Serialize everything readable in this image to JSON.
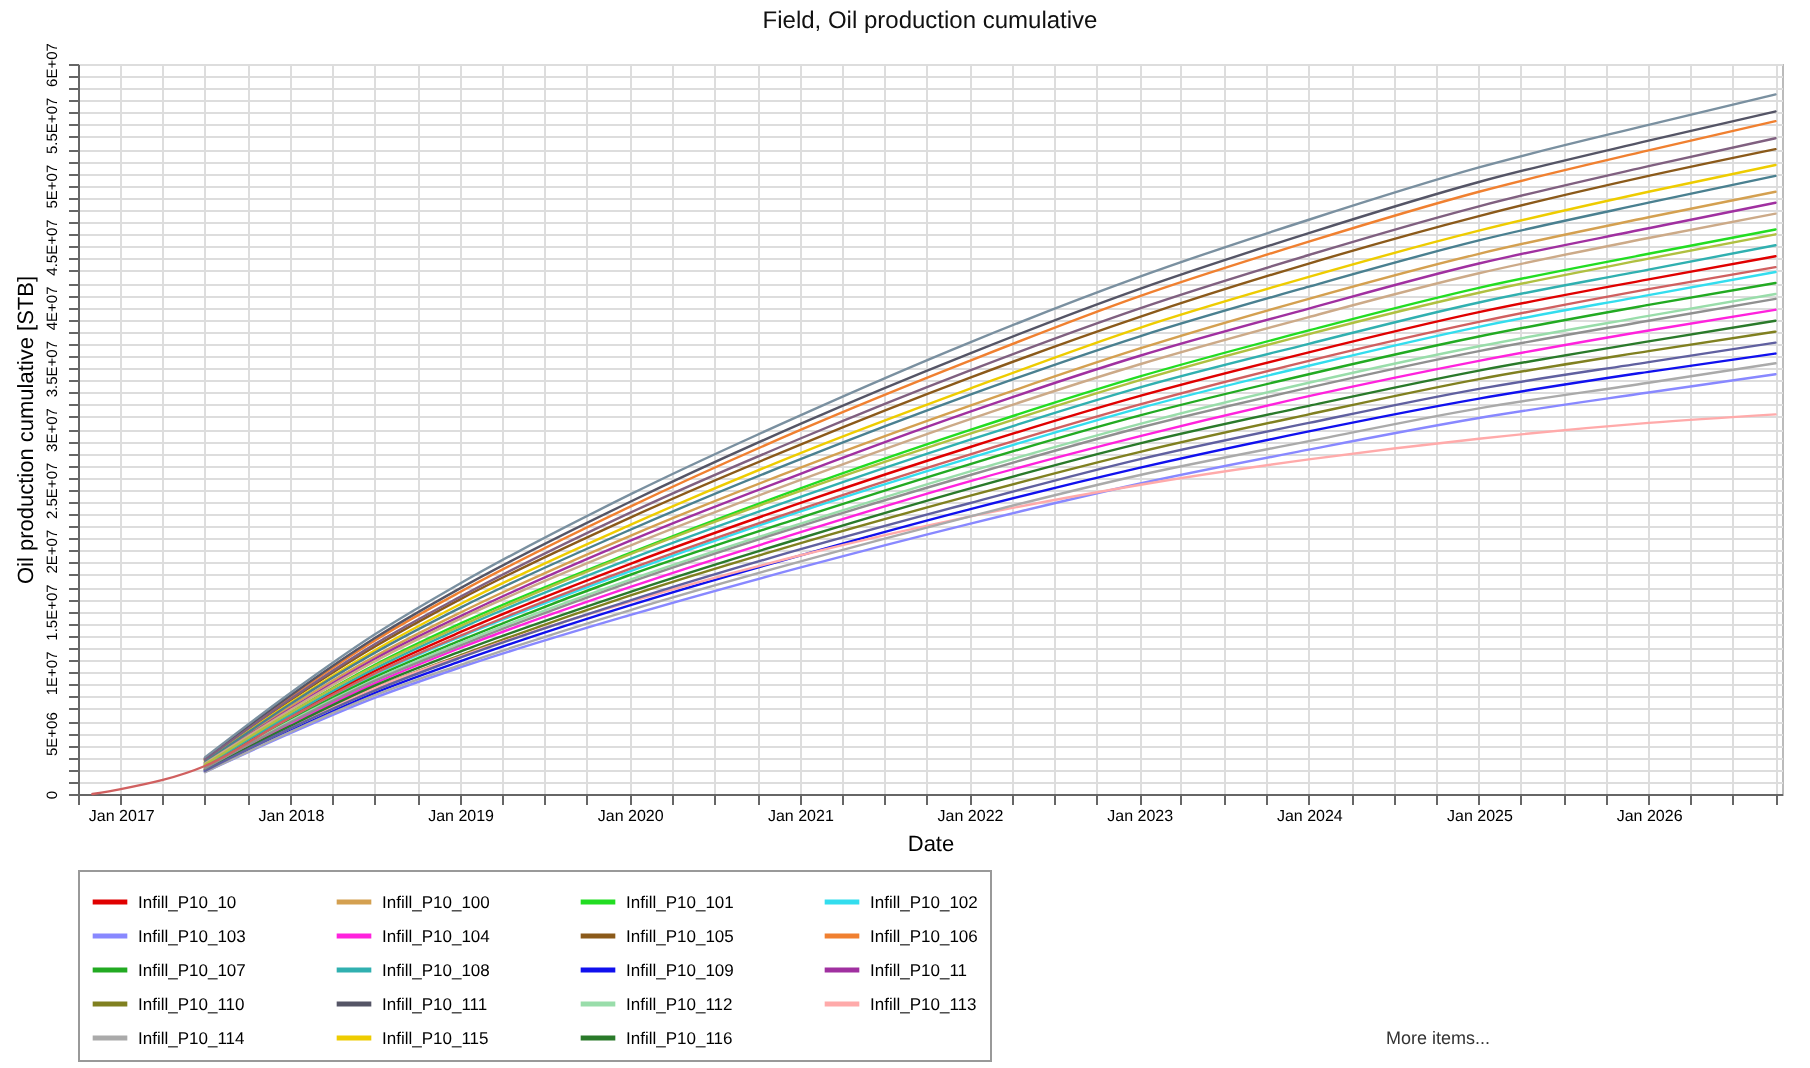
{
  "chart_data": {
    "type": "line",
    "title": "Field, Oil production cumulative",
    "xlabel": "Date",
    "ylabel": "Oil production cumulative [STB]",
    "legend": "bottom",
    "grid": true,
    "marker": "none",
    "line_style": "solid",
    "annotations": [
      "More items..."
    ],
    "x": [
      "2016-11-01",
      "2017-01-01",
      "2017-07-01",
      "2018-01-01",
      "2018-07-01",
      "2019-01-01",
      "2020-01-01",
      "2021-01-01",
      "2022-01-01",
      "2023-01-01",
      "2024-01-01",
      "2025-01-01",
      "2026-01-01",
      "2026-10-01"
    ],
    "xlim": [
      "2016-10-01",
      "2026-10-15"
    ],
    "xticks": [
      {
        "value": "2016-10-01",
        "label": null
      },
      {
        "value": "2017-01-01",
        "label": "Jan 2017"
      },
      {
        "value": "2017-04-01",
        "label": null
      },
      {
        "value": "2017-07-01",
        "label": null
      },
      {
        "value": "2017-10-01",
        "label": null
      },
      {
        "value": "2018-01-01",
        "label": "Jan 2018"
      },
      {
        "value": "2018-04-01",
        "label": null
      },
      {
        "value": "2018-07-01",
        "label": null
      },
      {
        "value": "2018-10-01",
        "label": null
      },
      {
        "value": "2019-01-01",
        "label": "Jan 2019"
      },
      {
        "value": "2019-04-01",
        "label": null
      },
      {
        "value": "2019-07-01",
        "label": null
      },
      {
        "value": "2019-10-01",
        "label": null
      },
      {
        "value": "2020-01-01",
        "label": "Jan 2020"
      },
      {
        "value": "2020-04-01",
        "label": null
      },
      {
        "value": "2020-07-01",
        "label": null
      },
      {
        "value": "2020-10-01",
        "label": null
      },
      {
        "value": "2021-01-01",
        "label": "Jan 2021"
      },
      {
        "value": "2021-04-01",
        "label": null
      },
      {
        "value": "2021-07-01",
        "label": null
      },
      {
        "value": "2021-10-01",
        "label": null
      },
      {
        "value": "2022-01-01",
        "label": "Jan 2022"
      },
      {
        "value": "2022-04-01",
        "label": null
      },
      {
        "value": "2022-07-01",
        "label": null
      },
      {
        "value": "2022-10-01",
        "label": null
      },
      {
        "value": "2023-01-01",
        "label": "Jan 2023"
      },
      {
        "value": "2023-04-01",
        "label": null
      },
      {
        "value": "2023-07-01",
        "label": null
      },
      {
        "value": "2023-10-01",
        "label": null
      },
      {
        "value": "2024-01-01",
        "label": "Jan 2024"
      },
      {
        "value": "2024-04-01",
        "label": null
      },
      {
        "value": "2024-07-01",
        "label": null
      },
      {
        "value": "2024-10-01",
        "label": null
      },
      {
        "value": "2025-01-01",
        "label": "Jan 2025"
      },
      {
        "value": "2025-04-01",
        "label": null
      },
      {
        "value": "2025-07-01",
        "label": null
      },
      {
        "value": "2025-10-01",
        "label": null
      },
      {
        "value": "2026-01-01",
        "label": "Jan 2026"
      },
      {
        "value": "2026-04-01",
        "label": null
      },
      {
        "value": "2026-07-01",
        "label": null
      },
      {
        "value": "2026-10-01",
        "label": null
      }
    ],
    "ylim": [
      0,
      60000000
    ],
    "yticks": [
      0,
      {
        "value": 1000000,
        "label": null
      },
      {
        "value": 2000000,
        "label": null
      },
      {
        "value": 3000000,
        "label": null
      },
      {
        "value": 4000000,
        "label": null
      },
      {
        "value": 5000000,
        "label": "5E+06"
      },
      {
        "value": 6000000,
        "label": null
      },
      {
        "value": 7000000,
        "label": null
      },
      {
        "value": 8000000,
        "label": null
      },
      {
        "value": 9000000,
        "label": null
      },
      {
        "value": 10000000,
        "label": "1E+07"
      },
      {
        "value": 11000000,
        "label": null
      },
      {
        "value": 12000000,
        "label": null
      },
      {
        "value": 13000000,
        "label": null
      },
      {
        "value": 14000000,
        "label": null
      },
      {
        "value": 15000000,
        "label": "1.5E+07"
      },
      {
        "value": 16000000,
        "label": null
      },
      {
        "value": 17000000,
        "label": null
      },
      {
        "value": 18000000,
        "label": null
      },
      {
        "value": 19000000,
        "label": null
      },
      {
        "value": 20000000,
        "label": "2E+07"
      },
      {
        "value": 21000000,
        "label": null
      },
      {
        "value": 22000000,
        "label": null
      },
      {
        "value": 23000000,
        "label": null
      },
      {
        "value": 24000000,
        "label": null
      },
      {
        "value": 25000000,
        "label": "2.5E+07"
      },
      {
        "value": 26000000,
        "label": null
      },
      {
        "value": 27000000,
        "label": null
      },
      {
        "value": 28000000,
        "label": null
      },
      {
        "value": 29000000,
        "label": null
      },
      {
        "value": 30000000,
        "label": "3E+07"
      },
      {
        "value": 31000000,
        "label": null
      },
      {
        "value": 32000000,
        "label": null
      },
      {
        "value": 33000000,
        "label": null
      },
      {
        "value": 34000000,
        "label": null
      },
      {
        "value": 35000000,
        "label": "3.5E+07"
      },
      {
        "value": 36000000,
        "label": null
      },
      {
        "value": 37000000,
        "label": null
      },
      {
        "value": 38000000,
        "label": null
      },
      {
        "value": 39000000,
        "label": null
      },
      {
        "value": 40000000,
        "label": "4E+07"
      },
      {
        "value": 41000000,
        "label": null
      },
      {
        "value": 42000000,
        "label": null
      },
      {
        "value": 43000000,
        "label": null
      },
      {
        "value": 44000000,
        "label": null
      },
      {
        "value": 45000000,
        "label": "4.5E+07"
      },
      {
        "value": 46000000,
        "label": null
      },
      {
        "value": 47000000,
        "label": null
      },
      {
        "value": 48000000,
        "label": null
      },
      {
        "value": 49000000,
        "label": null
      },
      {
        "value": 50000000,
        "label": "5E+07"
      },
      {
        "value": 51000000,
        "label": null
      },
      {
        "value": 52000000,
        "label": null
      },
      {
        "value": 53000000,
        "label": null
      },
      {
        "value": 54000000,
        "label": null
      },
      {
        "value": 55000000,
        "label": "5.5E+07"
      },
      {
        "value": 56000000,
        "label": null
      },
      {
        "value": 57000000,
        "label": null
      },
      {
        "value": 58000000,
        "label": null
      },
      {
        "value": 59000000,
        "label": null
      },
      {
        "value": 60000000,
        "label": "6E+07"
      }
    ],
    "series": [
      {
        "name": "Infill_P10_10",
        "color": "#e00000",
        "values": [
          null,
          null,
          2300000.0,
          6400000.0,
          10100000.0,
          13300000.0,
          18900000.0,
          23900000.0,
          28500000.0,
          32700000.0,
          36300000.0,
          39600000.0,
          42300000.0,
          44200000.0
        ]
      },
      {
        "name": "Infill_P10_100",
        "color": "#d4a050",
        "values": [
          null,
          null,
          2600000.0,
          7200000.0,
          11300000.0,
          14900000.0,
          21200000.0,
          26800000.0,
          31900000.0,
          36600000.0,
          40700000.0,
          44400000.0,
          47400000.0,
          49500000.0
        ]
      },
      {
        "name": "Infill_P10_101",
        "color": "#22dd22",
        "values": [
          null,
          null,
          2400000.0,
          6700000.0,
          10600000.0,
          14000000.0,
          19800000.0,
          25100000.0,
          29900000.0,
          34300000.0,
          38100000.0,
          41600000.0,
          44400000.0,
          46400000.0
        ]
      },
      {
        "name": "Infill_P10_102",
        "color": "#33ddee",
        "values": [
          null,
          null,
          null,
          6200000.0,
          9800000.0,
          12900000.0,
          18300000.0,
          23200000.0,
          27600000.0,
          31700000.0,
          35200000.0,
          38400000.0,
          41000000.0,
          42900000.0
        ]
      },
      {
        "name": "Infill_P10_103",
        "color": "#8888ff",
        "values": [
          null,
          null,
          1800000.0,
          5000000.0,
          7900000.0,
          10400000.0,
          14700000.0,
          18600000.0,
          22200000.0,
          25500000.0,
          28300000.0,
          30900000.0,
          33000000.0,
          34500000.0
        ]
      },
      {
        "name": "Infill_P10_104",
        "color": "#ff22dd",
        "values": [
          null,
          null,
          2100000.0,
          5800000.0,
          9100000.0,
          12000000.0,
          17000000.0,
          21500000.0,
          25700000.0,
          29400000.0,
          32700000.0,
          35600000.0,
          38100000.0,
          39800000.0
        ]
      },
      {
        "name": "Infill_P10_105",
        "color": "#8b5a1a",
        "values": [
          null,
          null,
          2800000.0,
          7700000.0,
          12100000.0,
          16000000.0,
          22700000.0,
          28700000.0,
          34200000.0,
          39200000.0,
          43600000.0,
          47500000.0,
          50800000.0,
          53000000.0
        ]
      },
      {
        "name": "Infill_P10_106",
        "color": "#f08030",
        "values": [
          null,
          null,
          2900000.0,
          8000000.0,
          12600000.0,
          16600000.0,
          23600000.0,
          29900000.0,
          35600000.0,
          40900000.0,
          45400000.0,
          49500000.0,
          52900000.0,
          55300000.0
        ]
      },
      {
        "name": "Infill_P10_107",
        "color": "#22aa22",
        "values": [
          null,
          null,
          2200000.0,
          6100000.0,
          9600000.0,
          12600000.0,
          18000000.0,
          22700000.0,
          27100000.0,
          31100000.0,
          34500000.0,
          37600000.0,
          40200000.0,
          42000000.0
        ]
      },
      {
        "name": "Infill_P10_108",
        "color": "#30b0b0",
        "values": [
          null,
          null,
          2300000.0,
          6500000.0,
          10300000.0,
          13600000.0,
          19300000.0,
          24400000.0,
          29100000.0,
          33400000.0,
          37000000.0,
          40400000.0,
          43100000.0,
          45100000.0
        ]
      },
      {
        "name": "Infill_P10_109",
        "color": "#1010ee",
        "values": [
          null,
          null,
          1900000.0,
          5200000.0,
          8300000.0,
          10900000.0,
          15500000.0,
          19600000.0,
          23400000.0,
          26800000.0,
          29800000.0,
          32500000.0,
          34700000.0,
          36200000.0
        ]
      },
      {
        "name": "Infill_P10_11",
        "color": "#a030a0",
        "values": [
          null,
          null,
          2500000.0,
          7000000.0,
          11100000.0,
          14600000.0,
          20800000.0,
          26300000.0,
          31400000.0,
          36000000.0,
          39900000.0,
          43600000.0,
          46500000.0,
          48600000.0
        ]
      },
      {
        "name": "Infill_P10_110",
        "color": "#808020",
        "values": [
          null,
          null,
          2000000.0,
          5500000.0,
          8700000.0,
          11400000.0,
          16300000.0,
          20600000.0,
          24500000.0,
          28100000.0,
          31200000.0,
          34100000.0,
          36400000.0,
          38000000.0
        ]
      },
      {
        "name": "Infill_P10_111",
        "color": "#555566",
        "values": [
          null,
          null,
          2900000.0,
          8100000.0,
          12800000.0,
          16900000.0,
          24000000.0,
          30400000.0,
          36200000.0,
          41500000.0,
          46100000.0,
          50300000.0,
          53700000.0,
          56100000.0
        ]
      },
      {
        "name": "Infill_P10_112",
        "color": "#99ddaa",
        "values": [
          null,
          null,
          2100000.0,
          6000000.0,
          9400000.0,
          12400000.0,
          17600000.0,
          22200000.0,
          26500000.0,
          30400000.0,
          33800000.0,
          36800000.0,
          39300000.0,
          41100000.0
        ]
      },
      {
        "name": "Infill_P10_113",
        "color": "#ffaaaa",
        "values": [
          null,
          null,
          2000000.0,
          5500000.0,
          8700000.0,
          11300000.0,
          15800000.0,
          19600000.0,
          22800000.0,
          25400000.0,
          27500000.0,
          29200000.0,
          30500000.0,
          31200000.0
        ]
      },
      {
        "name": "Infill_P10_114",
        "color": "#aaaaaa",
        "values": [
          null,
          null,
          1800000.0,
          5100000.0,
          8100000.0,
          10600000.0,
          15100000.0,
          19100000.0,
          22800000.0,
          26200000.0,
          29000000.0,
          31700000.0,
          33800000.0,
          35400000.0
        ]
      },
      {
        "name": "Infill_P10_115",
        "color": "#eecc00",
        "values": [
          null,
          null,
          2700000.0,
          7500000.0,
          11800000.0,
          15600000.0,
          22100000.0,
          28000000.0,
          33300000.0,
          38300000.0,
          42500000.0,
          46300000.0,
          49500000.0,
          51700000.0
        ]
      },
      {
        "name": "Infill_P10_116",
        "color": "#2a7a2a",
        "values": [
          null,
          null,
          2000000.0,
          5600000.0,
          8900000.0,
          11700000.0,
          16600000.0,
          21000000.0,
          25100000.0,
          28800000.0,
          31900000.0,
          34800000.0,
          37200000.0,
          38900000.0
        ]
      },
      {
        "color": "#7a90a0",
        "values": [
          null,
          null,
          3000000.0,
          8300000.0,
          13100000.0,
          17300000.0,
          24600000.0,
          31100000.0,
          37100000.0,
          42500000.0,
          47200000.0,
          51500000.0,
          55000000.0,
          57500000.0
        ]
      },
      {
        "color": "#806080",
        "values": [
          null,
          null,
          2800000.0,
          7800000.0,
          12300000.0,
          16200000.0,
          23100000.0,
          29200000.0,
          34800000.0,
          39900000.0,
          44300000.0,
          48300000.0,
          51600000.0,
          53900000.0
        ]
      },
      {
        "color": "#4a8090",
        "values": [
          null,
          null,
          2600000.0,
          7400000.0,
          11600000.0,
          15300000.0,
          21700000.0,
          27500000.0,
          32800000.0,
          37600000.0,
          41700000.0,
          45500000.0,
          48600000.0,
          50800000.0
        ]
      },
      {
        "color": "#ccaa88",
        "values": [
          null,
          null,
          2500000.0,
          6900000.0,
          10900000.0,
          14400000.0,
          20400000.0,
          25800000.0,
          30800000.0,
          35300000.0,
          39200000.0,
          42800000.0,
          45700000.0,
          47700000.0
        ]
      },
      {
        "color": "#6060a0",
        "values": [
          null,
          null,
          1900000.0,
          5400000.0,
          8500000.0,
          11200000.0,
          15900000.0,
          20100000.0,
          23900000.0,
          27500000.0,
          30500000.0,
          33300000.0,
          35500000.0,
          37100000.0
        ]
      },
      {
        "color": "#909090",
        "values": [
          null,
          null,
          2100000.0,
          5900000.0,
          9300000.0,
          12200000.0,
          17400000.0,
          22000000.0,
          26200000.0,
          30100000.0,
          33400000.0,
          36400000.0,
          38900000.0,
          40700000.0
        ]
      },
      {
        "color": "#b0c040",
        "values": [
          null,
          null,
          2400000.0,
          6700000.0,
          10500000.0,
          13800000.0,
          19700000.0,
          24900000.0,
          29600000.0,
          34000000.0,
          37800000.0,
          41200000.0,
          44000000.0,
          46000000.0
        ]
      },
      {
        "color": "#d06060",
        "values": [
          0,
          400000.0,
          2300000.0,
          6300000.0,
          9900000.0,
          13000000.0,
          18500000.0,
          23400000.0,
          27900000.0,
          32000000.0,
          35600000.0,
          38800000.0,
          41500000.0,
          43300000.0
        ]
      }
    ]
  }
}
